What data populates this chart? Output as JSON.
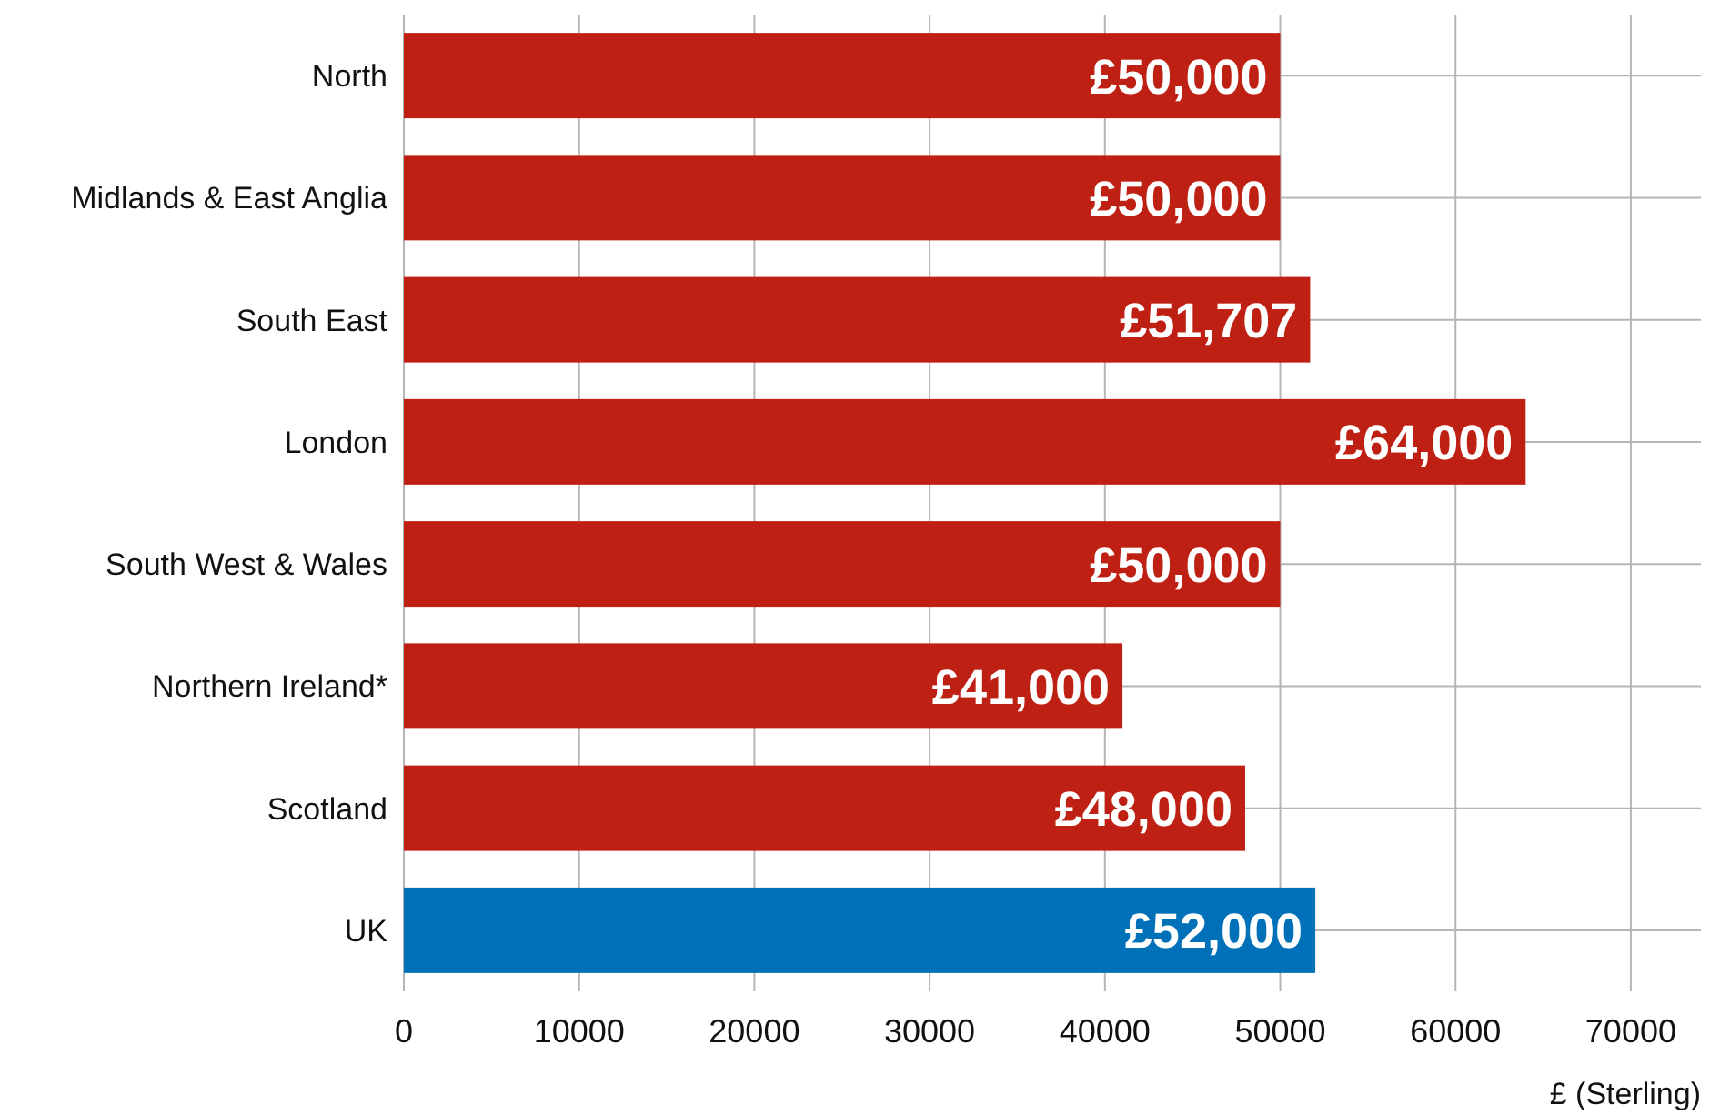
{
  "chart_data": {
    "type": "bar",
    "orientation": "horizontal",
    "categories": [
      "North",
      "Midlands & East Anglia",
      "South East",
      "London",
      "South West & Wales",
      "Northern Ireland*",
      "Scotland",
      "UK"
    ],
    "values": [
      50000,
      50000,
      51707,
      64000,
      50000,
      41000,
      48000,
      52000
    ],
    "colors": [
      "#bf2014",
      "#bf2014",
      "#bf2014",
      "#bf2014",
      "#bf2014",
      "#bf2014",
      "#bf2014",
      "#0071b8"
    ],
    "value_labels": [
      "£50,000",
      "£50,000",
      "£51,707",
      "£64,000",
      "£50,000",
      "£41,000",
      "£48,000",
      "£52,000"
    ],
    "xlim": [
      0,
      74000
    ],
    "xticks": [
      0,
      10000,
      20000,
      30000,
      40000,
      50000,
      60000,
      70000
    ],
    "xlabel": "£ (Sterling)",
    "grid": true
  }
}
